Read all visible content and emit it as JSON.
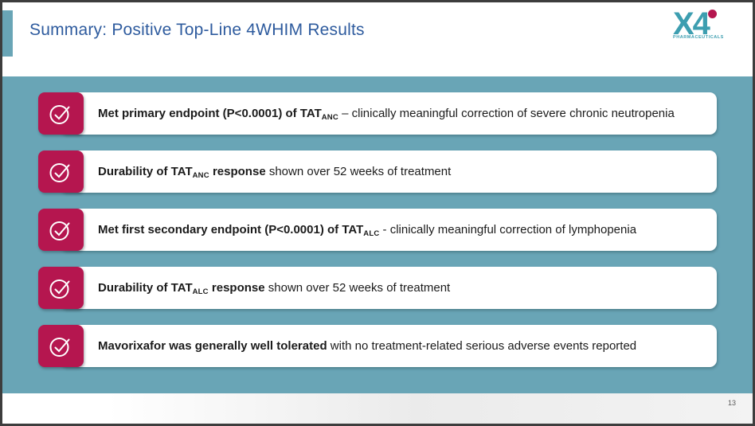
{
  "slide": {
    "title": "Summary: Positive Top-Line 4WHIM Results",
    "page_number": "13"
  },
  "logo": {
    "text": "X4",
    "subtext": "PHARMACEUTICALS",
    "dot_icon": "crimson-dot-icon"
  },
  "colors": {
    "teal_band": "#69A5B6",
    "crimson": "#B5164F",
    "title_blue": "#2E5B9E",
    "logo_teal": "#3D9EB0",
    "card_bg": "#FFFFFF",
    "body_text": "#1B1B1B"
  },
  "checklist": {
    "icon": "check-circle-icon",
    "rows": [
      {
        "segments": [
          {
            "text": "Met primary endpoint (P<0.0001) of TAT",
            "bold": true,
            "sub": false
          },
          {
            "text": "ANC",
            "bold": true,
            "sub": true
          },
          {
            "text": " – clinically meaningful correction of severe chronic neutropenia",
            "bold": false,
            "sub": false
          }
        ]
      },
      {
        "segments": [
          {
            "text": "Durability of TAT",
            "bold": true,
            "sub": false
          },
          {
            "text": "ANC",
            "bold": true,
            "sub": true
          },
          {
            "text": " response",
            "bold": true,
            "sub": false
          },
          {
            "text": " shown over 52 weeks of treatment",
            "bold": false,
            "sub": false
          }
        ]
      },
      {
        "segments": [
          {
            "text": "Met first secondary endpoint (P<0.0001) of TAT",
            "bold": true,
            "sub": false
          },
          {
            "text": "ALC",
            "bold": true,
            "sub": true
          },
          {
            "text": " - clinically meaningful correction of lymphopenia",
            "bold": false,
            "sub": false
          }
        ]
      },
      {
        "segments": [
          {
            "text": "Durability of TAT",
            "bold": true,
            "sub": false
          },
          {
            "text": "ALC",
            "bold": true,
            "sub": true
          },
          {
            "text": " response",
            "bold": true,
            "sub": false
          },
          {
            "text": " shown over 52 weeks of treatment",
            "bold": false,
            "sub": false
          }
        ]
      },
      {
        "segments": [
          {
            "text": "Mavorixafor was generally well tolerated",
            "bold": true,
            "sub": false
          },
          {
            "text": " with no treatment-related serious adverse events reported",
            "bold": false,
            "sub": false
          }
        ]
      }
    ]
  }
}
